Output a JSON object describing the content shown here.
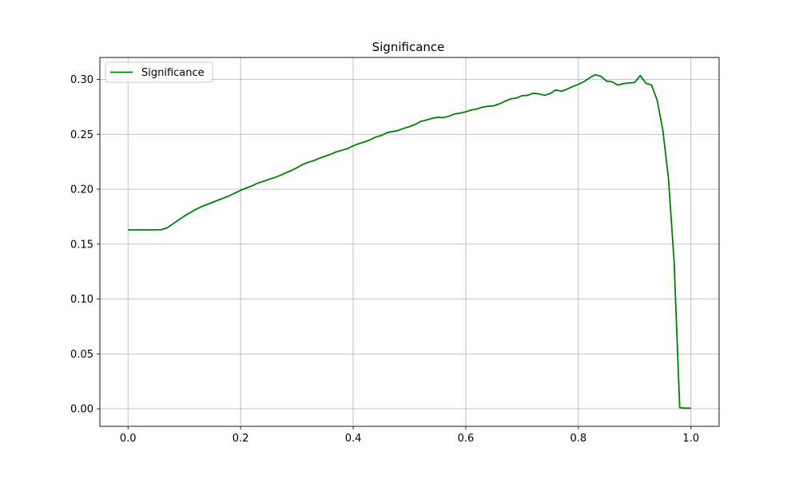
{
  "chart_data": {
    "type": "line",
    "title": "Significance",
    "xlabel": "",
    "ylabel": "",
    "xlim": [
      -0.05,
      1.05
    ],
    "ylim": [
      -0.016,
      0.32
    ],
    "x_ticks": [
      0.0,
      0.2,
      0.4,
      0.6,
      0.8,
      1.0
    ],
    "x_tick_labels": [
      "0.0",
      "0.2",
      "0.4",
      "0.6",
      "0.8",
      "1.0"
    ],
    "y_ticks": [
      0.0,
      0.05,
      0.1,
      0.15,
      0.2,
      0.25,
      0.3
    ],
    "y_tick_labels": [
      "0.00",
      "0.05",
      "0.10",
      "0.15",
      "0.20",
      "0.25",
      "0.30"
    ],
    "grid": true,
    "legend_position": "top-left",
    "series": [
      {
        "name": "Significance",
        "color": "#008000",
        "x": [
          0.0,
          0.01,
          0.02,
          0.03,
          0.04,
          0.05,
          0.06,
          0.07,
          0.08,
          0.09,
          0.1,
          0.11,
          0.12,
          0.13,
          0.14,
          0.15,
          0.16,
          0.17,
          0.18,
          0.19,
          0.2,
          0.21,
          0.22,
          0.23,
          0.24,
          0.25,
          0.26,
          0.27,
          0.28,
          0.29,
          0.3,
          0.31,
          0.32,
          0.33,
          0.34,
          0.35,
          0.36,
          0.37,
          0.38,
          0.39,
          0.4,
          0.41,
          0.42,
          0.43,
          0.44,
          0.45,
          0.46,
          0.47,
          0.48,
          0.49,
          0.5,
          0.51,
          0.52,
          0.53,
          0.54,
          0.55,
          0.56,
          0.57,
          0.58,
          0.59,
          0.6,
          0.61,
          0.62,
          0.63,
          0.64,
          0.65,
          0.66,
          0.67,
          0.68,
          0.69,
          0.7,
          0.71,
          0.72,
          0.73,
          0.74,
          0.75,
          0.76,
          0.77,
          0.78,
          0.79,
          0.8,
          0.81,
          0.82,
          0.83,
          0.84,
          0.85,
          0.86,
          0.87,
          0.88,
          0.89,
          0.9,
          0.91,
          0.92,
          0.93,
          0.94,
          0.95,
          0.96,
          0.97,
          0.98,
          0.99,
          1.0
        ],
        "y": [
          0.163,
          0.163,
          0.163,
          0.163,
          0.163,
          0.163,
          0.1632,
          0.165,
          0.1685,
          0.172,
          0.1755,
          0.1785,
          0.1815,
          0.184,
          0.186,
          0.188,
          0.19,
          0.192,
          0.194,
          0.1965,
          0.199,
          0.201,
          0.203,
          0.2055,
          0.207,
          0.209,
          0.2105,
          0.2125,
          0.2148,
          0.217,
          0.2195,
          0.2225,
          0.2245,
          0.226,
          0.2282,
          0.23,
          0.2318,
          0.234,
          0.2355,
          0.237,
          0.2395,
          0.2415,
          0.243,
          0.245,
          0.2475,
          0.249,
          0.2515,
          0.2525,
          0.2535,
          0.2555,
          0.257,
          0.259,
          0.2618,
          0.263,
          0.2645,
          0.2655,
          0.2652,
          0.2665,
          0.2685,
          0.2693,
          0.2705,
          0.2722,
          0.2732,
          0.2748,
          0.2755,
          0.276,
          0.2778,
          0.2802,
          0.2823,
          0.283,
          0.2852,
          0.2855,
          0.2875,
          0.2868,
          0.2855,
          0.2872,
          0.2905,
          0.2892,
          0.2912,
          0.2935,
          0.2955,
          0.298,
          0.3015,
          0.3043,
          0.3028,
          0.2985,
          0.2978,
          0.2948,
          0.2962,
          0.2968,
          0.2972,
          0.3035,
          0.2965,
          0.2948,
          0.281,
          0.254,
          0.21,
          0.135,
          0.001,
          0.0005,
          0.0005
        ]
      }
    ]
  }
}
